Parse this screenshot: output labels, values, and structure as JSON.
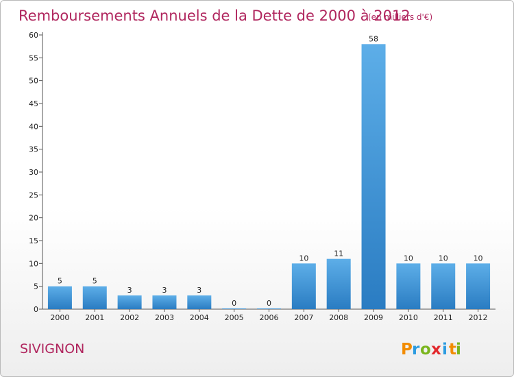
{
  "chart_data": {
    "type": "bar",
    "title": "Remboursements Annuels de la Dette de 2000 à 2012",
    "subtitle": "(en milliers d'€)",
    "categories": [
      "2000",
      "2001",
      "2002",
      "2003",
      "2004",
      "2005",
      "2006",
      "2007",
      "2008",
      "2009",
      "2010",
      "2011",
      "2012"
    ],
    "values": [
      5,
      5,
      3,
      3,
      3,
      0,
      0,
      10,
      11,
      58,
      10,
      10,
      10
    ],
    "ylim": [
      0,
      60
    ],
    "yticks": [
      0,
      5,
      10,
      15,
      20,
      25,
      30,
      35,
      40,
      45,
      50,
      55,
      60
    ],
    "xlabel": "",
    "ylabel": "",
    "grid": false,
    "legend": "none"
  },
  "place_name": "SIVIGNON",
  "logo": {
    "letters": [
      "P",
      "r",
      "o",
      "x",
      "i",
      "t",
      "i"
    ]
  },
  "colors": {
    "title": "#b0265e",
    "bar_light": "#5daee8",
    "bar_dark": "#2a7fc4",
    "axis": "#555555"
  }
}
